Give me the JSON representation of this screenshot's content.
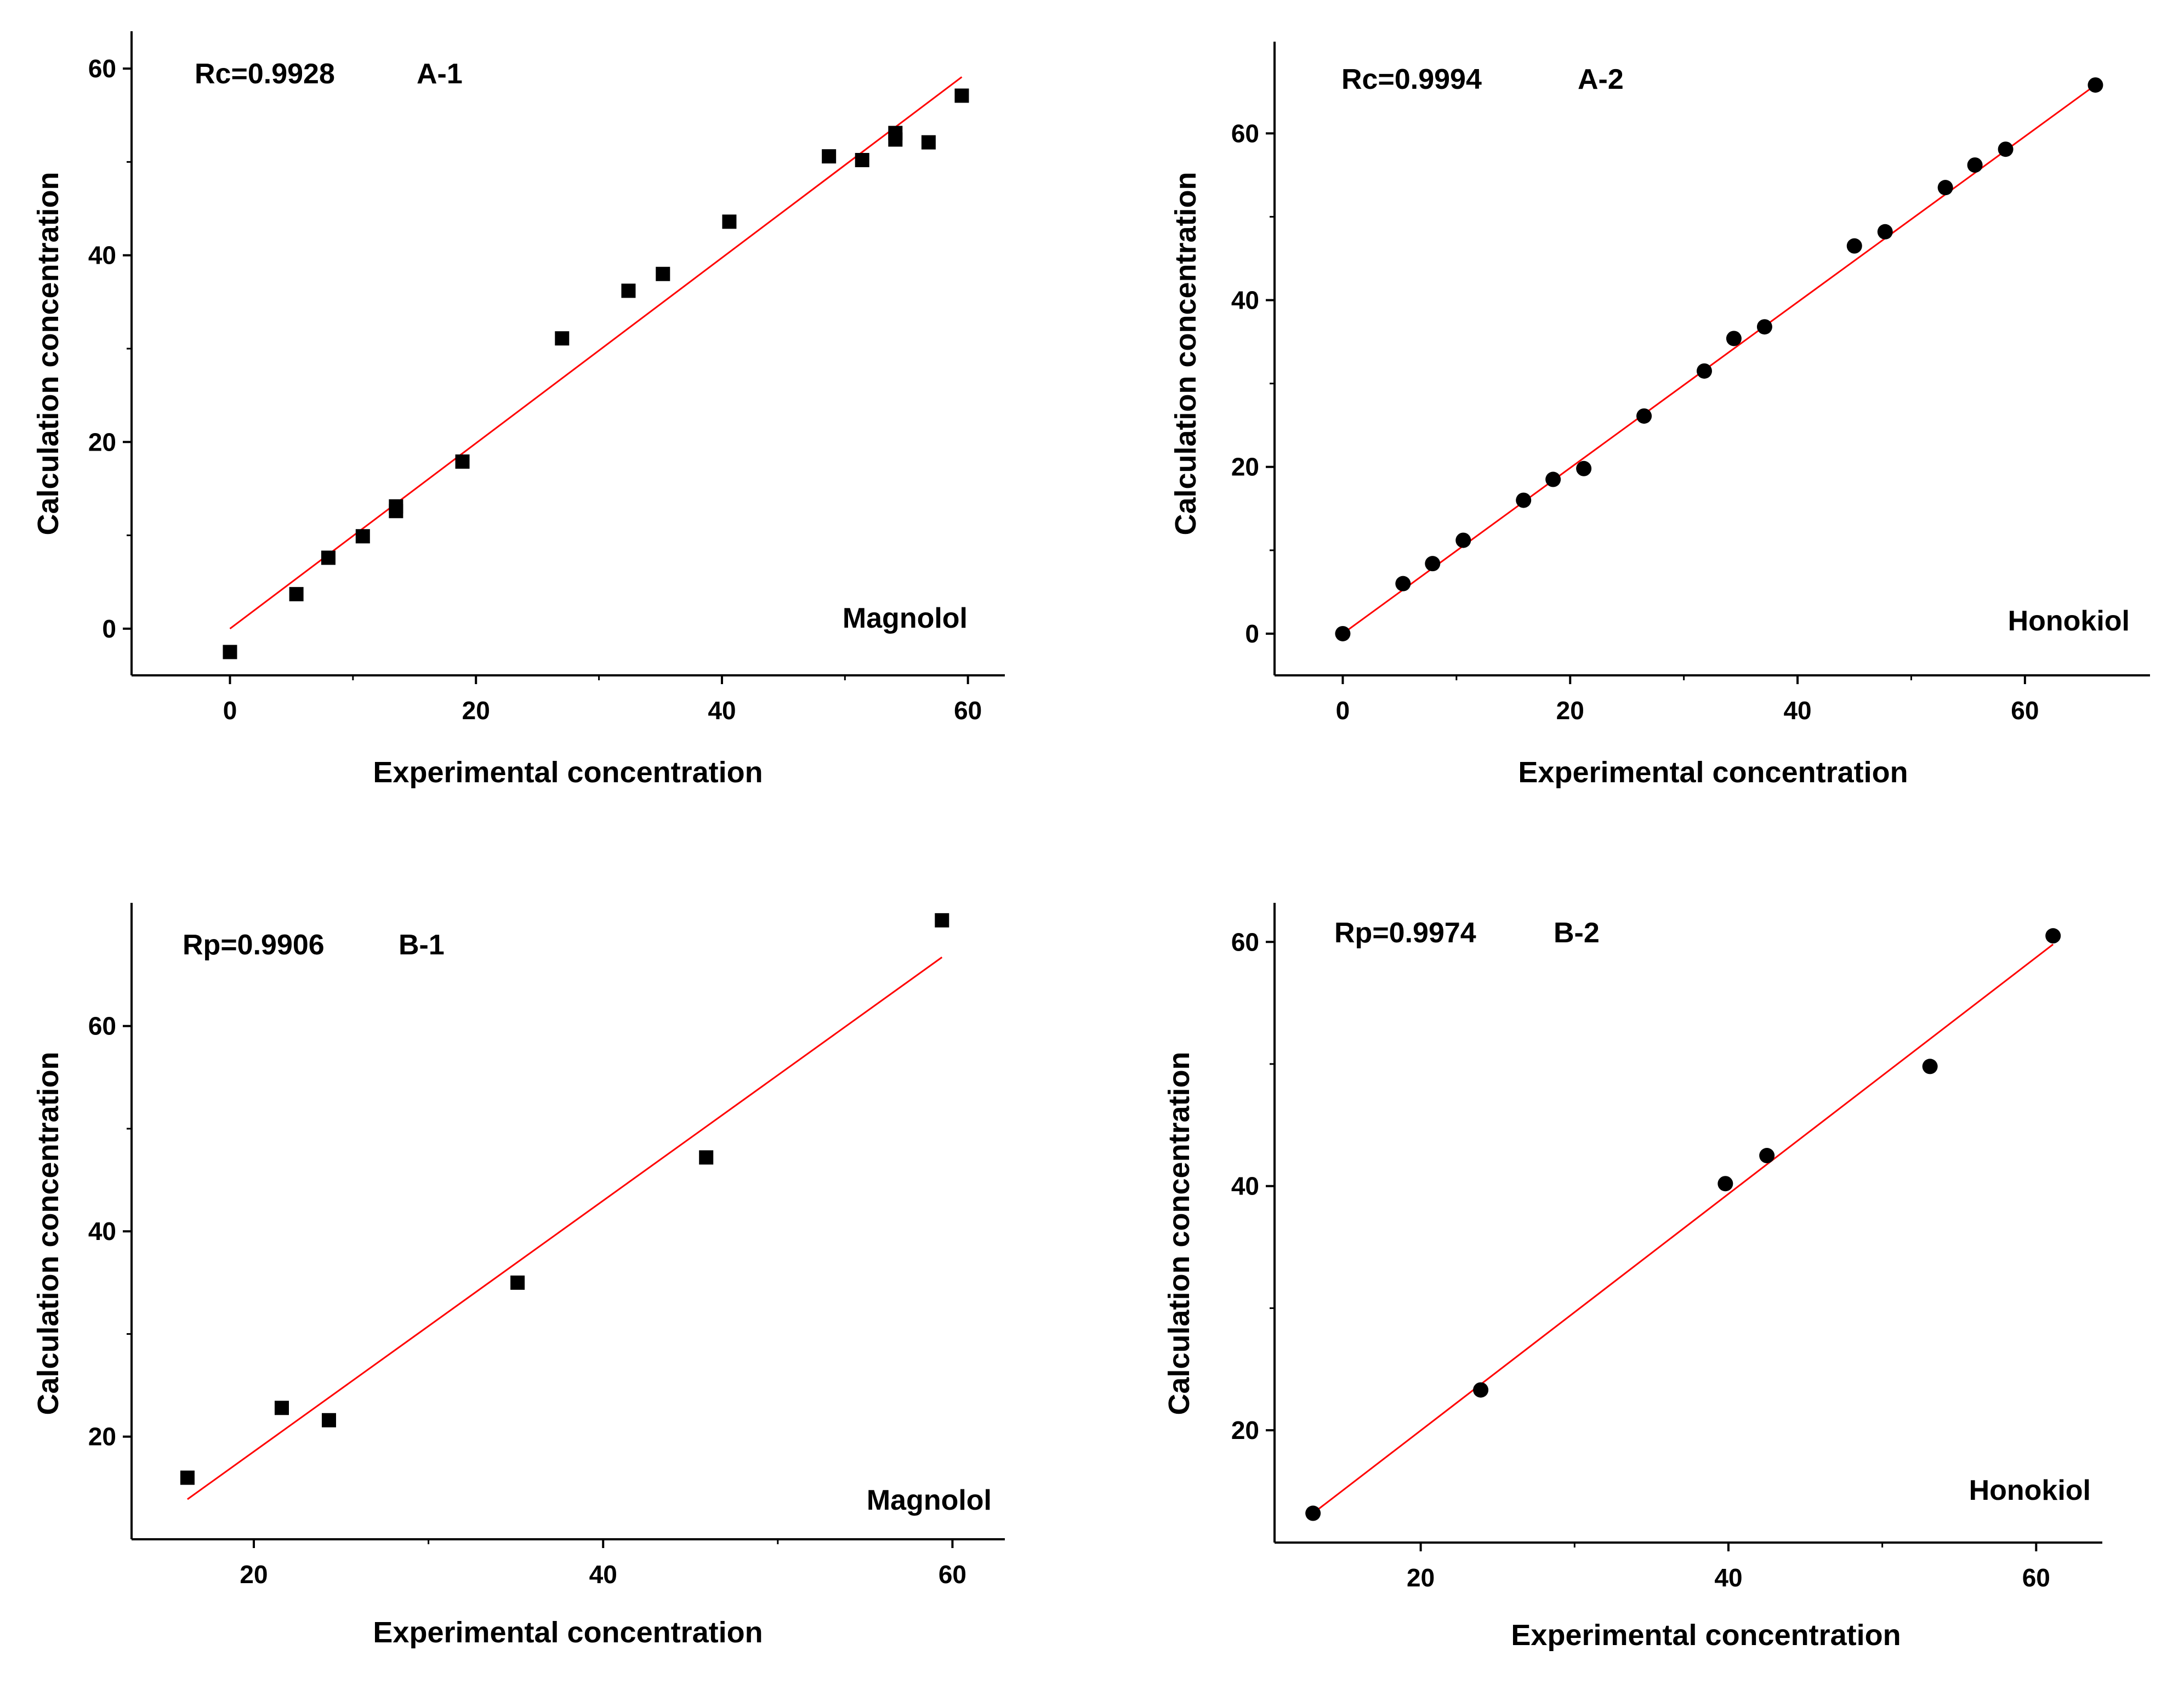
{
  "chart_data": [
    {
      "type": "scatter",
      "marker": "square",
      "title": "",
      "annotation": "A-1",
      "stat_label": "Rc=0.9928",
      "compound": "Magnolol",
      "xlabel": "Experimental concentration",
      "ylabel": "Calculation concentration",
      "xlim": [
        -8,
        63
      ],
      "ylim": [
        -5,
        64
      ],
      "xticks": [
        0,
        20,
        40,
        60
      ],
      "yticks": [
        0,
        20,
        40,
        60
      ],
      "x": [
        0,
        5.4,
        8,
        10.8,
        13.5,
        13.5,
        18.9,
        27,
        32.4,
        35.2,
        40.6,
        48.7,
        51.4,
        54.1,
        54.1,
        56.8,
        59.5
      ],
      "y": [
        -2.5,
        3.7,
        7.6,
        9.9,
        12.6,
        13.1,
        17.9,
        31.1,
        36.2,
        38,
        43.6,
        50.6,
        50.2,
        52.4,
        53.1,
        52.1,
        57.1
      ],
      "fit_line": [
        [
          0,
          0
        ],
        [
          59.5,
          59.1
        ]
      ],
      "fit_color": "#ff0000",
      "marker_color": "#000000"
    },
    {
      "type": "scatter",
      "marker": "circle",
      "title": "",
      "annotation": "A-2",
      "stat_label": "Rc=0.9994",
      "compound": "Honokiol",
      "xlabel": "Experimental concentration",
      "ylabel": "Calculation concentration",
      "xlim": [
        -6,
        71
      ],
      "ylim": [
        -5,
        71
      ],
      "xticks": [
        0,
        20,
        40,
        60
      ],
      "yticks": [
        0,
        20,
        40,
        60
      ],
      "x": [
        0,
        5.3,
        7.9,
        10.6,
        15.9,
        18.5,
        21.2,
        26.5,
        31.8,
        34.4,
        37.1,
        45,
        47.7,
        53,
        55.6,
        58.3,
        66.2
      ],
      "y": [
        0,
        6,
        8.4,
        11.2,
        16,
        18.5,
        19.8,
        26.1,
        31.5,
        35.4,
        36.8,
        46.5,
        48.2,
        53.5,
        56.2,
        58.1,
        65.8
      ],
      "fit_line": [
        [
          0,
          0
        ],
        [
          66.2,
          65.8
        ]
      ],
      "fit_color": "#ff0000",
      "marker_color": "#000000"
    },
    {
      "type": "scatter",
      "marker": "square",
      "title": "",
      "annotation": "B-1",
      "stat_label": "Rp=0.9906",
      "compound": "Magnolol",
      "xlabel": "Experimental concentration",
      "ylabel": "Calculation concentration",
      "xlim": [
        13,
        63
      ],
      "ylim": [
        10,
        72
      ],
      "xticks": [
        20,
        40,
        60
      ],
      "yticks": [
        20,
        40,
        60
      ],
      "x": [
        16.2,
        21.6,
        24.3,
        35.1,
        45.9,
        59.4
      ],
      "y": [
        16,
        22.8,
        21.6,
        35,
        47.2,
        70.3
      ],
      "fit_line": [
        [
          16.2,
          13.9
        ],
        [
          59.4,
          66.7
        ]
      ],
      "fit_color": "#ff0000",
      "marker_color": "#000000"
    },
    {
      "type": "scatter",
      "marker": "circle",
      "title": "",
      "annotation": "B-2",
      "stat_label": "Rp=0.9974",
      "compound": "Honokiol",
      "xlabel": "Experimental concentration",
      "ylabel": "Calculation concentration",
      "xlim": [
        10.5,
        64.3
      ],
      "ylim": [
        10.8,
        63.2
      ],
      "xticks": [
        20,
        40,
        60
      ],
      "yticks": [
        20,
        40,
        60
      ],
      "x": [
        13,
        23.9,
        39.8,
        42.5,
        53.1,
        61.1
      ],
      "y": [
        13.2,
        23.3,
        40.2,
        42.5,
        49.8,
        60.5
      ],
      "fit_line": [
        [
          13,
          13.2
        ],
        [
          61.1,
          59.8
        ]
      ],
      "fit_color": "#ff0000",
      "marker_color": "#000000"
    }
  ]
}
